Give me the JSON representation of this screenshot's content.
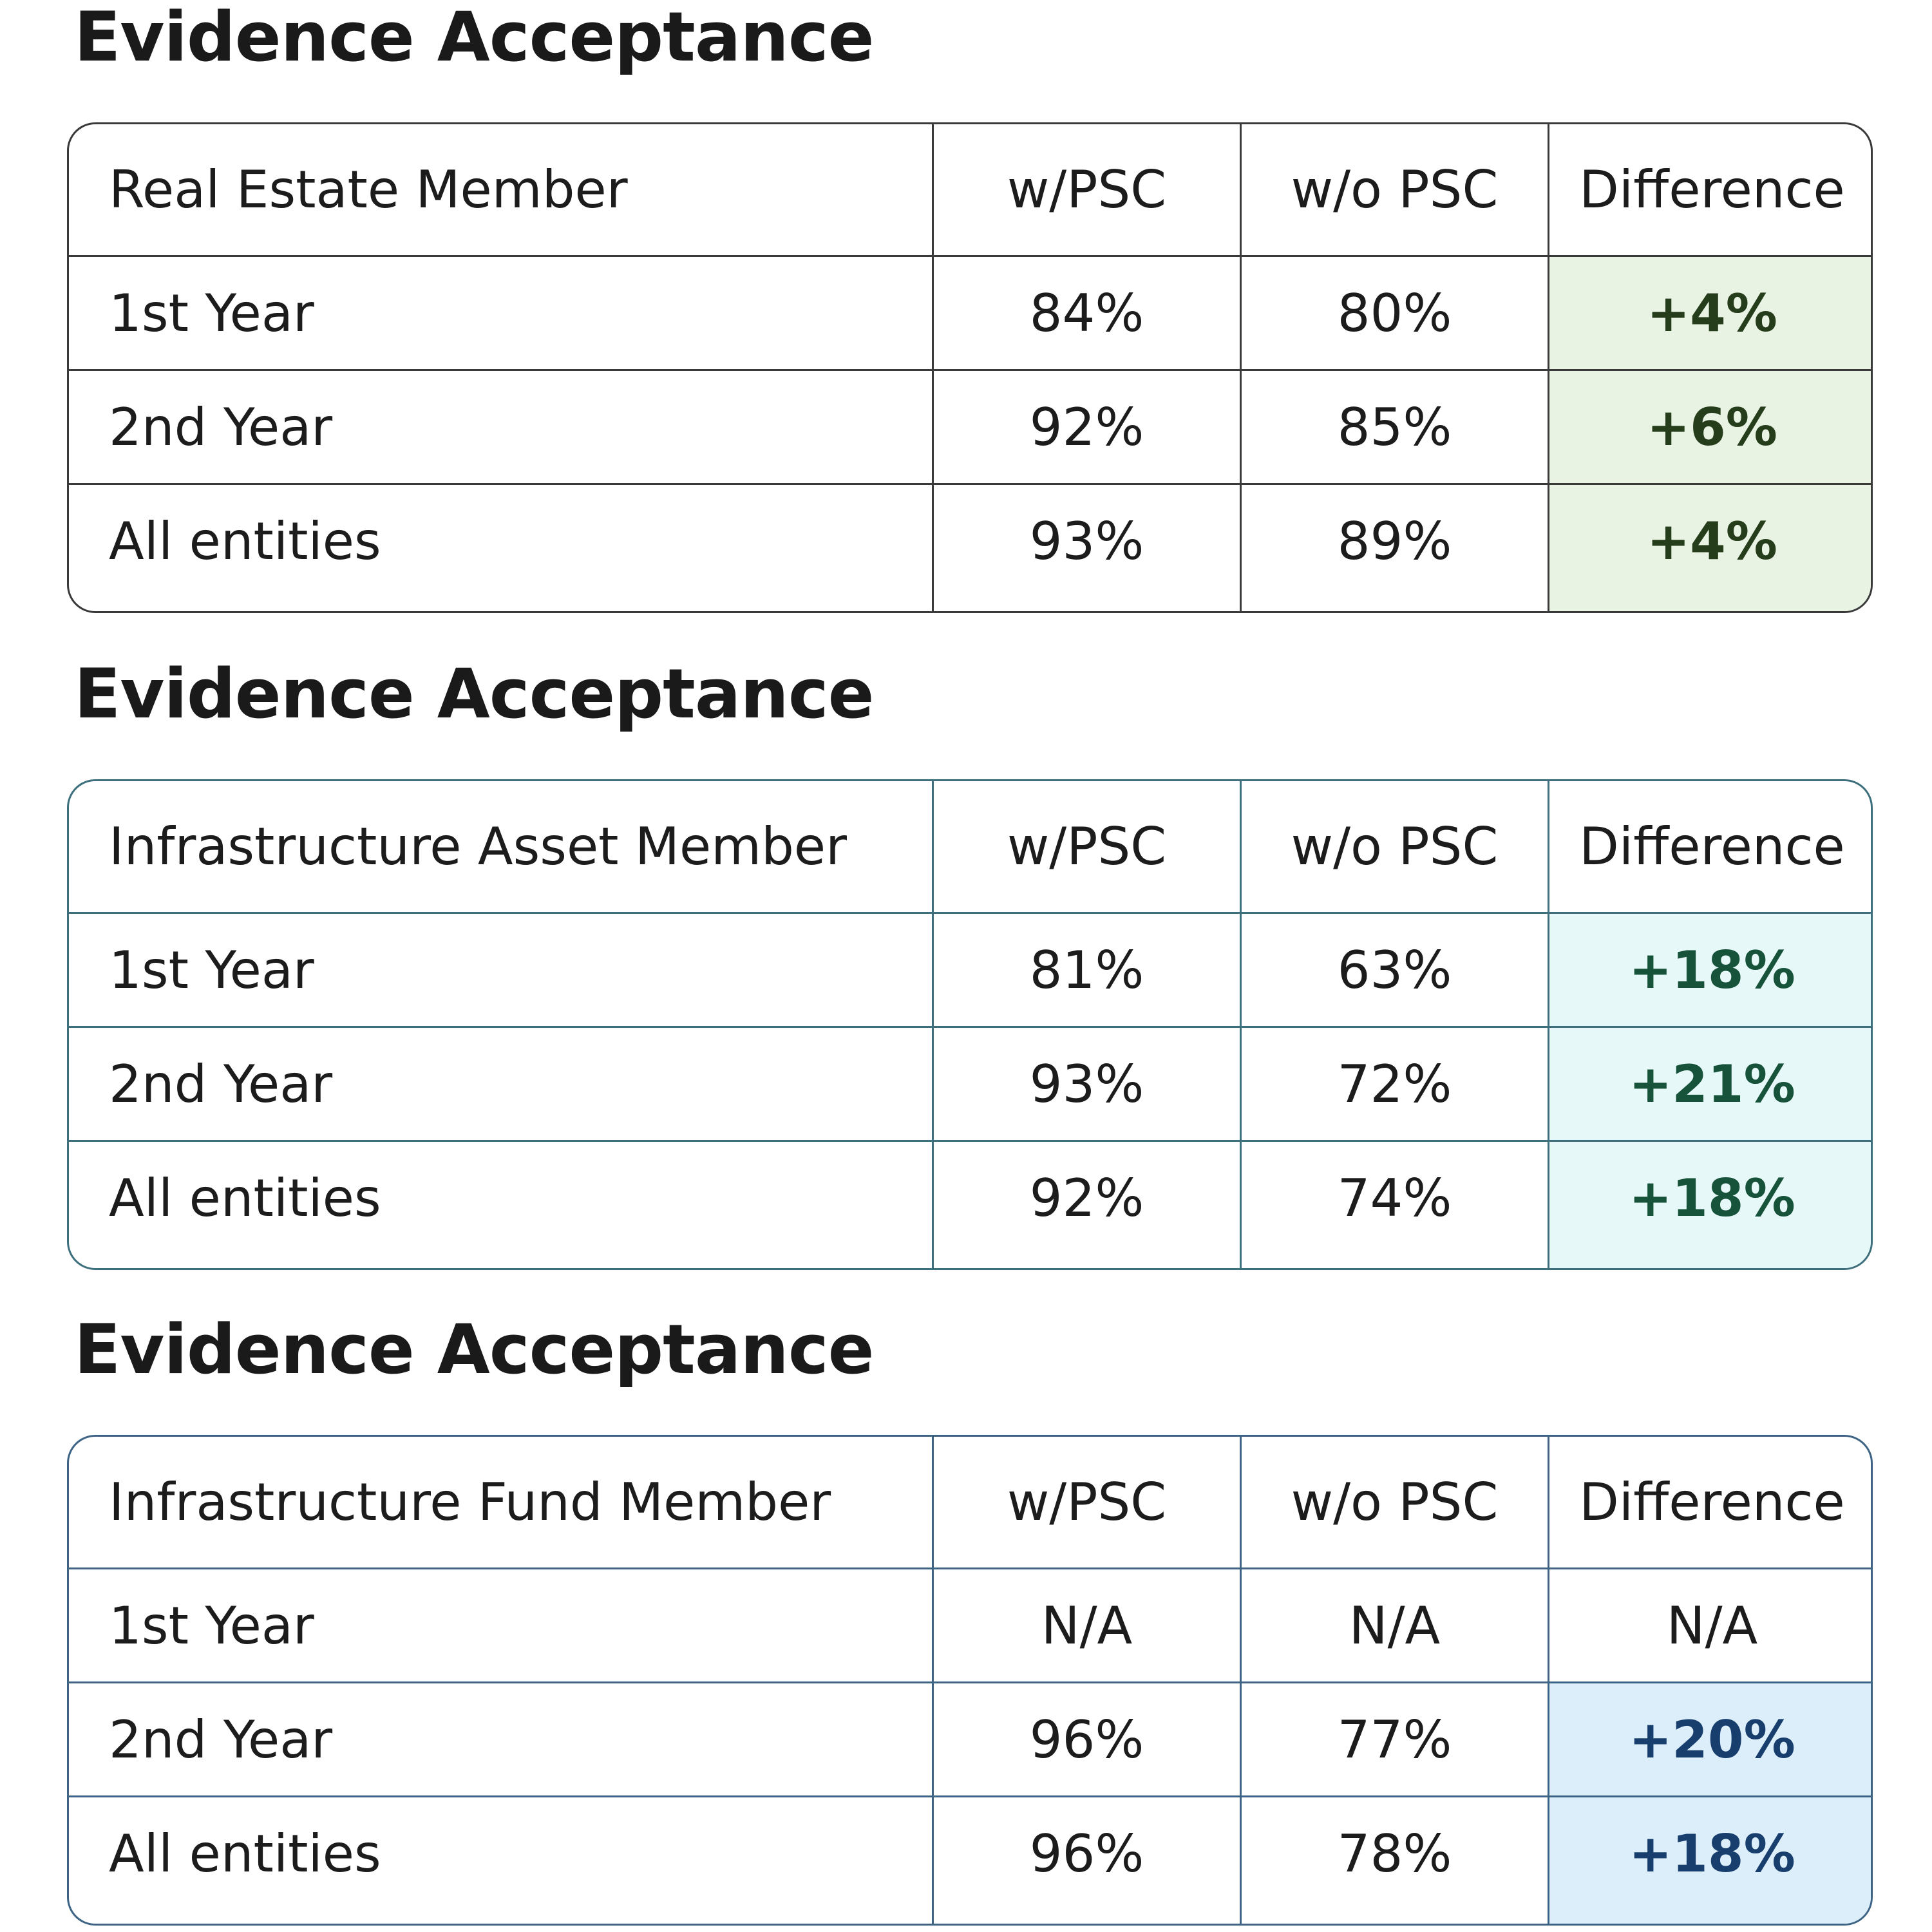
{
  "tables": [
    {
      "title": "Evidence Acceptance",
      "headers": [
        "Real Estate Member",
        "w/PSC",
        "w/o PSC",
        "Difference"
      ],
      "rows": [
        [
          "1st Year",
          "84%",
          "80%",
          "+4%"
        ],
        [
          "2nd Year",
          "92%",
          "85%",
          "+6%"
        ],
        [
          "All entities",
          "93%",
          "89%",
          "+4%"
        ]
      ],
      "accent": "#e9f3e3"
    },
    {
      "title": "Evidence Acceptance",
      "headers": [
        "Infrastructure Asset Member",
        "w/PSC",
        "w/o PSC",
        "Difference"
      ],
      "rows": [
        [
          "1st Year",
          "81%",
          "63%",
          "+18%"
        ],
        [
          "2nd Year",
          "93%",
          "72%",
          "+21%"
        ],
        [
          "All entities",
          "92%",
          "74%",
          "+18%"
        ]
      ],
      "accent": "#e6f8f7"
    },
    {
      "title": "Evidence Acceptance",
      "headers": [
        "Infrastructure Fund Member",
        "w/PSC",
        "w/o PSC",
        "Difference"
      ],
      "rows": [
        [
          "1st Year",
          "N/A",
          "N/A",
          "N/A"
        ],
        [
          "2nd Year",
          "96%",
          "77%",
          "+20%"
        ],
        [
          "All entities",
          "96%",
          "78%",
          "+18%"
        ]
      ],
      "accent": "#ddeefb"
    }
  ]
}
